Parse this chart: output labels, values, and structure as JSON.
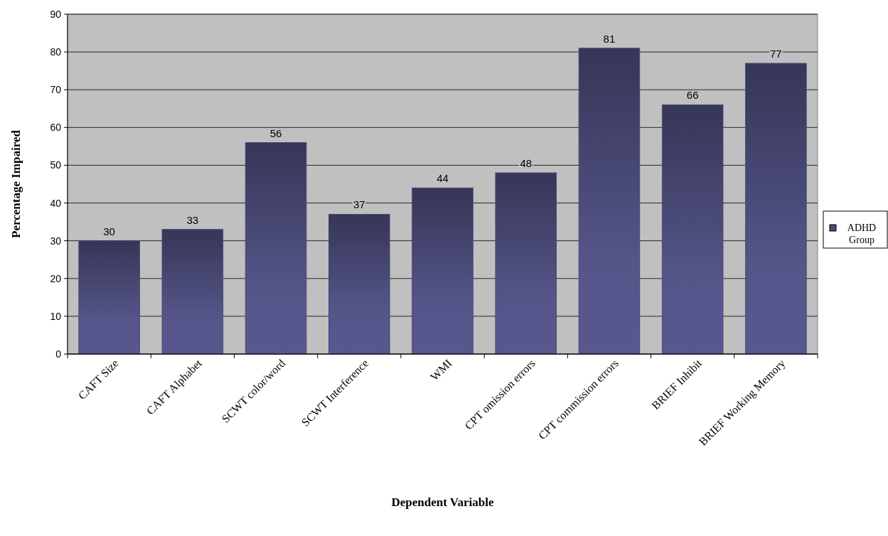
{
  "chart_data": {
    "type": "bar",
    "xlabel": "Dependent Variable",
    "ylabel": "Percentage Impaired",
    "categories": [
      "CAFT Size",
      "CAFT Alphabet",
      "SCWT color/word",
      "SCWT Interference",
      "WMI",
      "CPT omission errors",
      "CPT commission errors",
      "BRIEF Inhibit",
      "BRIEF Working Memory"
    ],
    "series": [
      {
        "name": "ADHD Group",
        "color": "#4a4a78",
        "values": [
          30,
          33,
          56,
          37,
          44,
          48,
          81,
          66,
          77
        ]
      }
    ],
    "ylim": [
      0,
      90
    ],
    "yticks": [
      0,
      10,
      20,
      30,
      40,
      50,
      60,
      70,
      80,
      90
    ],
    "grid": "y",
    "legend": "right",
    "data_labels": true
  }
}
